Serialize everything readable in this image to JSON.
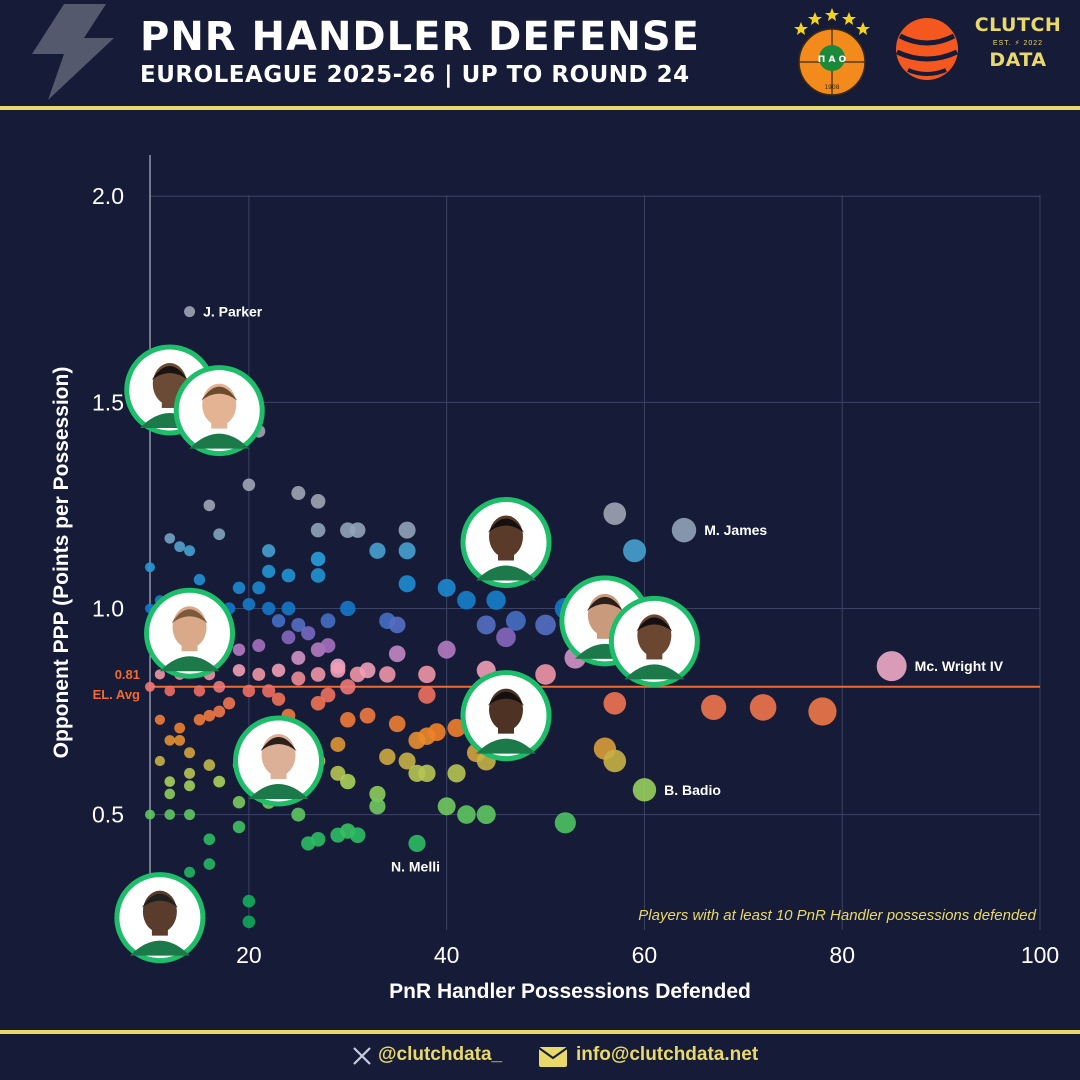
{
  "header": {
    "title": "PNR HANDLER DEFENSE",
    "subtitle": "EUROLEAGUE 2025-26 | UP TO ROUND 24",
    "pao_logo": {
      "letters": "Π Α Ο",
      "year": "1908"
    },
    "clutch_logo": {
      "top": "CLUTCH",
      "mid": "EST. ⚡ 2022",
      "bottom": "DATA"
    }
  },
  "colors": {
    "background": "#161c38",
    "accent": "#e9d96a",
    "avg_line": "#f26a2e",
    "panathinaikos_green": "#1ebd6a"
  },
  "chart_data": {
    "type": "scatter",
    "xlabel": "PnR Handler Possessions Defended",
    "ylabel": "Opponent PPP (Points per Possession)",
    "xlim": [
      10,
      100
    ],
    "ylim": [
      0.22,
      2.1
    ],
    "xticks": [
      20,
      40,
      60,
      80,
      100
    ],
    "yticks": [
      0.5,
      1.0,
      1.5,
      2.0
    ],
    "xtick_labels": [
      "20",
      "40",
      "60",
      "80",
      "100"
    ],
    "ytick_labels": [
      "0.5",
      "1.0",
      "1.5",
      "2.0"
    ],
    "grid": true,
    "average": {
      "value": 0.81,
      "label_value": "0.81",
      "label_text": "EL. Avg"
    },
    "note": "Players with at least 10 PnR Handler possessions defended",
    "points": [
      {
        "x": 14,
        "y": 1.72
      },
      {
        "x": 13,
        "y": 1.44
      },
      {
        "x": 20,
        "y": 1.44
      },
      {
        "x": 21,
        "y": 1.43
      },
      {
        "x": 20,
        "y": 1.3
      },
      {
        "x": 25,
        "y": 1.28
      },
      {
        "x": 27,
        "y": 1.26
      },
      {
        "x": 16,
        "y": 1.25
      },
      {
        "x": 17,
        "y": 1.18
      },
      {
        "x": 12,
        "y": 1.17
      },
      {
        "x": 13,
        "y": 1.15
      },
      {
        "x": 14,
        "y": 1.14
      },
      {
        "x": 27,
        "y": 1.19
      },
      {
        "x": 31,
        "y": 1.19
      },
      {
        "x": 36,
        "y": 1.19
      },
      {
        "x": 57,
        "y": 1.23
      },
      {
        "x": 64,
        "y": 1.19
      },
      {
        "x": 10,
        "y": 1.1
      },
      {
        "x": 15,
        "y": 1.07
      },
      {
        "x": 19,
        "y": 1.05
      },
      {
        "x": 21,
        "y": 1.05
      },
      {
        "x": 22,
        "y": 1.14
      },
      {
        "x": 22,
        "y": 1.09
      },
      {
        "x": 24,
        "y": 1.08
      },
      {
        "x": 27,
        "y": 1.12
      },
      {
        "x": 27,
        "y": 1.08
      },
      {
        "x": 30,
        "y": 1.19
      },
      {
        "x": 33,
        "y": 1.14
      },
      {
        "x": 36,
        "y": 1.14
      },
      {
        "x": 36,
        "y": 1.06
      },
      {
        "x": 40,
        "y": 1.05
      },
      {
        "x": 42,
        "y": 1.02
      },
      {
        "x": 45,
        "y": 1.02
      },
      {
        "x": 47,
        "y": 0.97
      },
      {
        "x": 59,
        "y": 1.14
      },
      {
        "x": 10,
        "y": 1.0
      },
      {
        "x": 11,
        "y": 1.02
      },
      {
        "x": 14,
        "y": 0.99
      },
      {
        "x": 18,
        "y": 1.0
      },
      {
        "x": 20,
        "y": 1.01
      },
      {
        "x": 22,
        "y": 1.0
      },
      {
        "x": 24,
        "y": 1.0
      },
      {
        "x": 23,
        "y": 0.97
      },
      {
        "x": 25,
        "y": 0.96
      },
      {
        "x": 26,
        "y": 0.94
      },
      {
        "x": 28,
        "y": 0.97
      },
      {
        "x": 30,
        "y": 1.0
      },
      {
        "x": 34,
        "y": 0.97
      },
      {
        "x": 35,
        "y": 0.96
      },
      {
        "x": 44,
        "y": 0.96
      },
      {
        "x": 46,
        "y": 0.93
      },
      {
        "x": 50,
        "y": 0.96
      },
      {
        "x": 52,
        "y": 1.0
      },
      {
        "x": 12,
        "y": 0.94
      },
      {
        "x": 15,
        "y": 0.92
      },
      {
        "x": 19,
        "y": 0.9
      },
      {
        "x": 21,
        "y": 0.91
      },
      {
        "x": 24,
        "y": 0.93
      },
      {
        "x": 25,
        "y": 0.88
      },
      {
        "x": 27,
        "y": 0.9
      },
      {
        "x": 28,
        "y": 0.91
      },
      {
        "x": 29,
        "y": 0.86
      },
      {
        "x": 35,
        "y": 0.89
      },
      {
        "x": 40,
        "y": 0.9
      },
      {
        "x": 53,
        "y": 0.88
      },
      {
        "x": 85,
        "y": 0.86
      },
      {
        "x": 11,
        "y": 0.84
      },
      {
        "x": 13,
        "y": 0.84
      },
      {
        "x": 15,
        "y": 0.85
      },
      {
        "x": 16,
        "y": 0.84
      },
      {
        "x": 19,
        "y": 0.85
      },
      {
        "x": 21,
        "y": 0.84
      },
      {
        "x": 23,
        "y": 0.85
      },
      {
        "x": 25,
        "y": 0.83
      },
      {
        "x": 27,
        "y": 0.84
      },
      {
        "x": 29,
        "y": 0.85
      },
      {
        "x": 31,
        "y": 0.84
      },
      {
        "x": 32,
        "y": 0.85
      },
      {
        "x": 34,
        "y": 0.84
      },
      {
        "x": 38,
        "y": 0.84
      },
      {
        "x": 44,
        "y": 0.85
      },
      {
        "x": 50,
        "y": 0.84
      },
      {
        "x": 10,
        "y": 0.81
      },
      {
        "x": 12,
        "y": 0.8
      },
      {
        "x": 15,
        "y": 0.8
      },
      {
        "x": 17,
        "y": 0.81
      },
      {
        "x": 20,
        "y": 0.8
      },
      {
        "x": 22,
        "y": 0.8
      },
      {
        "x": 23,
        "y": 0.78
      },
      {
        "x": 27,
        "y": 0.77
      },
      {
        "x": 28,
        "y": 0.79
      },
      {
        "x": 30,
        "y": 0.81
      },
      {
        "x": 38,
        "y": 0.79
      },
      {
        "x": 57,
        "y": 0.77
      },
      {
        "x": 67,
        "y": 0.76
      },
      {
        "x": 72,
        "y": 0.76
      },
      {
        "x": 78,
        "y": 0.75
      },
      {
        "x": 11,
        "y": 0.73
      },
      {
        "x": 13,
        "y": 0.71
      },
      {
        "x": 15,
        "y": 0.73
      },
      {
        "x": 16,
        "y": 0.74
      },
      {
        "x": 17,
        "y": 0.75
      },
      {
        "x": 18,
        "y": 0.77
      },
      {
        "x": 24,
        "y": 0.74
      },
      {
        "x": 30,
        "y": 0.73
      },
      {
        "x": 32,
        "y": 0.74
      },
      {
        "x": 35,
        "y": 0.72
      },
      {
        "x": 37,
        "y": 0.68
      },
      {
        "x": 38,
        "y": 0.69
      },
      {
        "x": 39,
        "y": 0.7
      },
      {
        "x": 41,
        "y": 0.71
      },
      {
        "x": 12,
        "y": 0.68
      },
      {
        "x": 13,
        "y": 0.68
      },
      {
        "x": 14,
        "y": 0.65
      },
      {
        "x": 20,
        "y": 0.66
      },
      {
        "x": 23,
        "y": 0.69
      },
      {
        "x": 29,
        "y": 0.67
      },
      {
        "x": 34,
        "y": 0.64
      },
      {
        "x": 36,
        "y": 0.63
      },
      {
        "x": 43,
        "y": 0.65
      },
      {
        "x": 56,
        "y": 0.66
      },
      {
        "x": 11,
        "y": 0.63
      },
      {
        "x": 14,
        "y": 0.6
      },
      {
        "x": 16,
        "y": 0.62
      },
      {
        "x": 19,
        "y": 0.62
      },
      {
        "x": 21,
        "y": 0.61
      },
      {
        "x": 25,
        "y": 0.62
      },
      {
        "x": 27,
        "y": 0.63
      },
      {
        "x": 29,
        "y": 0.6
      },
      {
        "x": 30,
        "y": 0.58
      },
      {
        "x": 37,
        "y": 0.6
      },
      {
        "x": 38,
        "y": 0.6
      },
      {
        "x": 41,
        "y": 0.6
      },
      {
        "x": 44,
        "y": 0.63
      },
      {
        "x": 57,
        "y": 0.63
      },
      {
        "x": 12,
        "y": 0.58
      },
      {
        "x": 14,
        "y": 0.57
      },
      {
        "x": 17,
        "y": 0.58
      },
      {
        "x": 22,
        "y": 0.57
      },
      {
        "x": 24,
        "y": 0.56
      },
      {
        "x": 60,
        "y": 0.56
      },
      {
        "x": 12,
        "y": 0.55
      },
      {
        "x": 19,
        "y": 0.53
      },
      {
        "x": 22,
        "y": 0.53
      },
      {
        "x": 33,
        "y": 0.55
      },
      {
        "x": 33,
        "y": 0.52
      },
      {
        "x": 40,
        "y": 0.52
      },
      {
        "x": 42,
        "y": 0.5
      },
      {
        "x": 44,
        "y": 0.5
      },
      {
        "x": 10,
        "y": 0.5
      },
      {
        "x": 12,
        "y": 0.5
      },
      {
        "x": 14,
        "y": 0.5
      },
      {
        "x": 25,
        "y": 0.5
      },
      {
        "x": 52,
        "y": 0.48
      },
      {
        "x": 16,
        "y": 0.44
      },
      {
        "x": 19,
        "y": 0.47
      },
      {
        "x": 26,
        "y": 0.43
      },
      {
        "x": 27,
        "y": 0.44
      },
      {
        "x": 29,
        "y": 0.45
      },
      {
        "x": 30,
        "y": 0.46
      },
      {
        "x": 31,
        "y": 0.45
      },
      {
        "x": 37,
        "y": 0.43
      },
      {
        "x": 14,
        "y": 0.36
      },
      {
        "x": 16,
        "y": 0.38
      },
      {
        "x": 13,
        "y": 0.3
      },
      {
        "x": 20,
        "y": 0.29
      },
      {
        "x": 20,
        "y": 0.24
      }
    ],
    "labels": [
      {
        "text": "J. Parker",
        "x": 14,
        "y": 1.72
      },
      {
        "text": "M. James",
        "x": 64,
        "y": 1.19
      },
      {
        "text": "Mc. Wright IV",
        "x": 85,
        "y": 0.86
      },
      {
        "text": "B. Badio",
        "x": 60,
        "y": 0.56
      },
      {
        "text": "N. Melli",
        "x": 37,
        "y": 0.43
      }
    ],
    "highlighted_players": [
      {
        "name": "panathinaikos-player-1",
        "x": 12,
        "y": 1.53
      },
      {
        "name": "panathinaikos-player-2",
        "x": 17,
        "y": 1.48
      },
      {
        "name": "panathinaikos-player-3",
        "x": 14,
        "y": 0.94
      },
      {
        "name": "panathinaikos-player-4",
        "x": 46,
        "y": 1.16
      },
      {
        "name": "panathinaikos-player-5",
        "x": 56,
        "y": 0.97
      },
      {
        "name": "panathinaikos-player-6",
        "x": 61,
        "y": 0.92
      },
      {
        "name": "panathinaikos-player-7",
        "x": 46,
        "y": 0.74
      },
      {
        "name": "panathinaikos-player-8",
        "x": 23,
        "y": 0.63
      },
      {
        "name": "panathinaikos-player-9",
        "x": 11,
        "y": 0.25
      }
    ]
  },
  "footer": {
    "twitter_icon": "x-logo-icon",
    "twitter": "@clutchdata_",
    "email_icon": "envelope-icon",
    "email": "info@clutchdata.net"
  }
}
